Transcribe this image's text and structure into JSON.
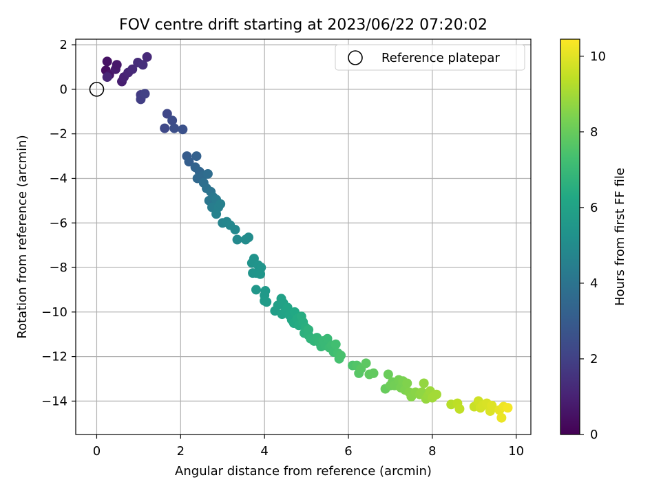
{
  "chart_data": {
    "type": "scatter",
    "title": "FOV centre drift starting at 2023/06/22 07:20:02",
    "xlabel": "Angular distance from reference (arcmin)",
    "ylabel": "Rotation from reference (arcmin)",
    "xlim": [
      -0.5,
      10.35
    ],
    "ylim": [
      -15.5,
      2.25
    ],
    "xticks": [
      0,
      2,
      4,
      6,
      8,
      10
    ],
    "yticks": [
      2,
      0,
      -2,
      -4,
      -6,
      -8,
      -10,
      -12,
      -14
    ],
    "grid": true,
    "legend": {
      "placement": "top-right",
      "entries": [
        "Reference platepar"
      ]
    },
    "reference_point": {
      "x": 0,
      "y": 0
    },
    "colorbar": {
      "label": "Hours from first FF file",
      "range": [
        0,
        10.45
      ],
      "ticks": [
        0,
        2,
        4,
        6,
        8,
        10
      ],
      "colormap": "viridis"
    },
    "series": [
      {
        "points": [
          [
            0.22,
            0.85,
            0.4
          ],
          [
            0.3,
            0.65,
            0.6
          ],
          [
            0.45,
            0.9,
            0.8
          ],
          [
            0.25,
            1.25,
            0.5
          ],
          [
            0.48,
            1.1,
            0.7
          ],
          [
            0.6,
            0.35,
            0.9
          ],
          [
            0.65,
            0.55,
            1.0
          ],
          [
            0.75,
            0.75,
            1.1
          ],
          [
            0.85,
            0.9,
            1.2
          ],
          [
            0.98,
            1.2,
            1.3
          ],
          [
            1.1,
            1.1,
            1.4
          ],
          [
            1.2,
            1.45,
            1.2
          ],
          [
            0.25,
            0.55,
            1.1
          ],
          [
            1.05,
            -0.25,
            1.8
          ],
          [
            1.05,
            -0.45,
            1.9
          ],
          [
            1.15,
            -0.2,
            2.0
          ],
          [
            1.68,
            -1.1,
            2.2
          ],
          [
            1.62,
            -1.75,
            2.3
          ],
          [
            1.8,
            -1.4,
            2.4
          ],
          [
            1.85,
            -1.75,
            2.5
          ],
          [
            2.05,
            -1.8,
            2.6
          ],
          [
            2.15,
            -3.0,
            3.0
          ],
          [
            2.2,
            -3.25,
            3.1
          ],
          [
            2.38,
            -3.0,
            3.2
          ],
          [
            2.35,
            -3.5,
            3.3
          ],
          [
            2.45,
            -3.7,
            3.4
          ],
          [
            2.4,
            -4.0,
            3.5
          ],
          [
            2.55,
            -3.85,
            3.6
          ],
          [
            2.65,
            -3.8,
            3.7
          ],
          [
            2.55,
            -4.2,
            3.8
          ],
          [
            2.62,
            -4.45,
            3.9
          ],
          [
            2.72,
            -4.6,
            4.0
          ],
          [
            2.68,
            -5.0,
            4.1
          ],
          [
            2.78,
            -4.85,
            4.2
          ],
          [
            2.85,
            -4.95,
            4.3
          ],
          [
            2.75,
            -5.3,
            4.4
          ],
          [
            2.9,
            -5.3,
            4.5
          ],
          [
            2.95,
            -5.15,
            4.5
          ],
          [
            2.85,
            -5.6,
            4.6
          ],
          [
            3.0,
            -6.0,
            4.7
          ],
          [
            3.1,
            -5.95,
            4.75
          ],
          [
            3.18,
            -6.1,
            4.8
          ],
          [
            3.3,
            -6.3,
            4.85
          ],
          [
            3.35,
            -6.75,
            4.9
          ],
          [
            3.55,
            -6.75,
            5.0
          ],
          [
            3.62,
            -6.65,
            5.0
          ],
          [
            3.75,
            -7.6,
            5.3
          ],
          [
            3.7,
            -7.8,
            5.3
          ],
          [
            3.85,
            -7.9,
            5.35
          ],
          [
            3.92,
            -8.0,
            5.4
          ],
          [
            3.72,
            -8.25,
            5.35
          ],
          [
            3.8,
            -8.25,
            5.4
          ],
          [
            3.9,
            -8.3,
            5.45
          ],
          [
            3.8,
            -9.0,
            5.5
          ],
          [
            4.02,
            -9.05,
            5.6
          ],
          [
            4.0,
            -9.25,
            5.6
          ],
          [
            4.0,
            -9.5,
            5.65
          ],
          [
            4.05,
            -9.55,
            5.7
          ],
          [
            4.25,
            -9.95,
            5.8
          ],
          [
            4.32,
            -9.7,
            5.85
          ],
          [
            4.4,
            -9.4,
            5.9
          ],
          [
            4.45,
            -9.6,
            5.95
          ],
          [
            4.42,
            -10.1,
            6.0
          ],
          [
            4.5,
            -9.95,
            6.05
          ],
          [
            4.55,
            -9.8,
            6.1
          ],
          [
            4.6,
            -10.15,
            6.15
          ],
          [
            4.65,
            -10.35,
            6.2
          ],
          [
            4.72,
            -10.0,
            6.25
          ],
          [
            4.7,
            -10.5,
            6.3
          ],
          [
            4.78,
            -10.3,
            6.35
          ],
          [
            4.82,
            -10.6,
            6.4
          ],
          [
            4.88,
            -10.2,
            6.45
          ],
          [
            4.92,
            -10.45,
            6.5
          ],
          [
            4.98,
            -10.7,
            6.55
          ],
          [
            4.95,
            -10.95,
            6.6
          ],
          [
            5.05,
            -11.05,
            6.7
          ],
          [
            5.05,
            -10.8,
            6.7
          ],
          [
            5.1,
            -11.2,
            6.75
          ],
          [
            5.18,
            -11.3,
            6.8
          ],
          [
            5.25,
            -11.15,
            6.85
          ],
          [
            5.3,
            -11.35,
            6.9
          ],
          [
            5.35,
            -11.55,
            6.95
          ],
          [
            5.4,
            -11.3,
            7.0
          ],
          [
            5.45,
            -11.5,
            7.0
          ],
          [
            5.5,
            -11.2,
            7.05
          ],
          [
            5.55,
            -11.6,
            7.1
          ],
          [
            5.6,
            -11.5,
            7.15
          ],
          [
            5.65,
            -11.8,
            7.2
          ],
          [
            5.7,
            -11.45,
            7.25
          ],
          [
            5.75,
            -11.85,
            7.3
          ],
          [
            5.78,
            -12.1,
            7.35
          ],
          [
            5.82,
            -11.95,
            7.4
          ],
          [
            6.1,
            -12.4,
            7.5
          ],
          [
            6.2,
            -12.4,
            7.6
          ],
          [
            6.25,
            -12.75,
            7.7
          ],
          [
            6.3,
            -12.55,
            7.75
          ],
          [
            6.42,
            -12.3,
            7.8
          ],
          [
            6.5,
            -12.8,
            7.85
          ],
          [
            6.6,
            -12.75,
            7.9
          ],
          [
            6.88,
            -13.45,
            8.0
          ],
          [
            6.95,
            -12.8,
            8.05
          ],
          [
            7.0,
            -13.3,
            8.1
          ],
          [
            7.05,
            -13.15,
            8.15
          ],
          [
            7.1,
            -13.3,
            8.2
          ],
          [
            7.2,
            -13.05,
            8.25
          ],
          [
            7.25,
            -13.4,
            8.3
          ],
          [
            7.3,
            -13.1,
            8.35
          ],
          [
            7.35,
            -13.5,
            8.4
          ],
          [
            7.4,
            -13.2,
            8.45
          ],
          [
            7.45,
            -13.6,
            8.5
          ],
          [
            7.5,
            -13.8,
            8.55
          ],
          [
            7.6,
            -13.6,
            8.6
          ],
          [
            7.7,
            -13.7,
            8.65
          ],
          [
            7.75,
            -13.6,
            8.7
          ],
          [
            7.8,
            -13.2,
            8.75
          ],
          [
            7.85,
            -13.9,
            8.8
          ],
          [
            7.9,
            -13.75,
            8.85
          ],
          [
            7.95,
            -13.55,
            8.9
          ],
          [
            8.0,
            -13.85,
            8.95
          ],
          [
            8.05,
            -13.75,
            9.0
          ],
          [
            8.1,
            -13.7,
            9.0
          ],
          [
            8.45,
            -14.15,
            9.3
          ],
          [
            8.6,
            -14.1,
            9.4
          ],
          [
            8.65,
            -14.35,
            9.45
          ],
          [
            9.0,
            -14.25,
            9.6
          ],
          [
            9.1,
            -14.0,
            9.7
          ],
          [
            9.15,
            -14.3,
            9.75
          ],
          [
            9.2,
            -14.2,
            9.8
          ],
          [
            9.3,
            -14.1,
            9.85
          ],
          [
            9.38,
            -14.45,
            9.9
          ],
          [
            9.42,
            -14.2,
            9.95
          ],
          [
            9.6,
            -14.4,
            10.1
          ],
          [
            9.65,
            -14.75,
            10.15
          ],
          [
            9.7,
            -14.25,
            10.2
          ],
          [
            9.8,
            -14.3,
            10.3
          ]
        ]
      }
    ]
  }
}
